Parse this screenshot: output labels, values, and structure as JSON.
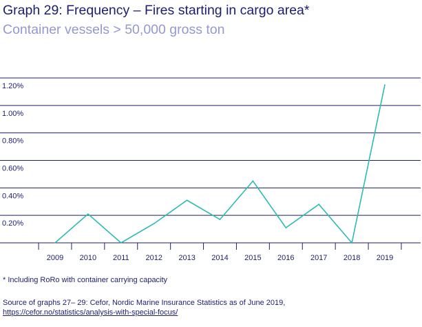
{
  "header": {
    "title": "Graph 29: Frequency – Fires starting in cargo area*",
    "subtitle": "Container vessels > 50,000 gross ton"
  },
  "chart_data": {
    "type": "line",
    "title": "Graph 29: Frequency – Fires starting in cargo area*",
    "subtitle": "Container vessels > 50,000 gross ton",
    "xlabel": "",
    "ylabel": "",
    "categories": [
      "2009",
      "2010",
      "2011",
      "2012",
      "2013",
      "2014",
      "2015",
      "2016",
      "2017",
      "2018",
      "2019"
    ],
    "series": [
      {
        "name": "Frequency",
        "values": [
          0.0,
          0.21,
          0.0,
          0.14,
          0.31,
          0.17,
          0.45,
          0.11,
          0.28,
          0.0,
          1.15
        ],
        "color": "#2bbbb0"
      }
    ],
    "yticks": [
      0.2,
      0.4,
      0.6,
      0.8,
      1.0,
      1.2
    ],
    "ytick_labels": [
      "0.20%",
      "0.40%",
      "0.60%",
      "0.80%",
      "1.00%",
      "1.20%"
    ],
    "ylim": [
      0,
      1.2
    ],
    "grid": true,
    "gridline_color": "#1c1d6e"
  },
  "footer": {
    "note": "*  Including RoRo with container carrying capacity",
    "source_line": "Source of graphs 27– 29: Cefor, Nordic Marine Insurance Statistics as of June 2019,",
    "source_link": "https://cefor.no/statistics/analysis-with-special-focus/"
  }
}
